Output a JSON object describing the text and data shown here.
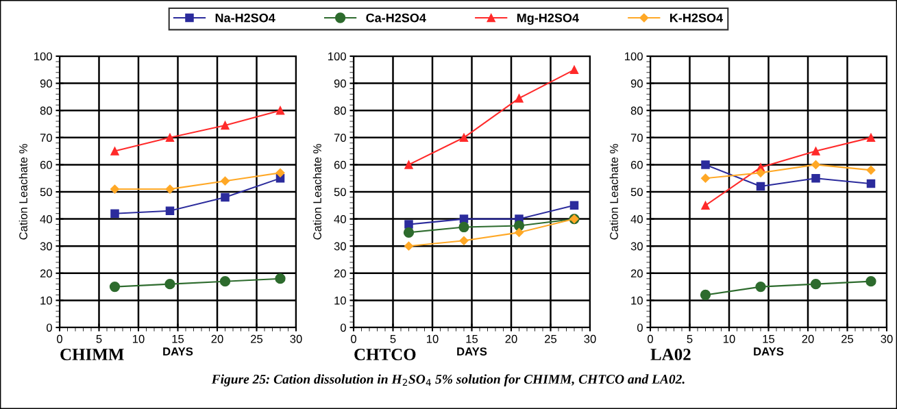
{
  "chart_data": [
    {
      "type": "line",
      "title": "CHIMM",
      "xlabel": "DAYS",
      "ylabel": "Cation Leachate %",
      "xlim": [
        0,
        30
      ],
      "xticks": [
        0,
        5,
        10,
        15,
        20,
        25,
        30
      ],
      "ylim": [
        0,
        100
      ],
      "yticks": [
        0,
        10,
        20,
        30,
        40,
        50,
        60,
        70,
        80,
        90,
        100
      ],
      "grid": true,
      "legend": "top",
      "x": [
        7,
        14,
        21,
        28
      ],
      "series": [
        {
          "name": "Na-H2SO4",
          "color": "#2b2b9c",
          "marker": "square",
          "values": [
            42,
            43,
            48,
            55
          ]
        },
        {
          "name": "Ca-H2SO4",
          "color": "#2d6b2d",
          "marker": "circle",
          "values": [
            15,
            16,
            17,
            18
          ]
        },
        {
          "name": "Mg-H2SO4",
          "color": "#ff2a2a",
          "marker": "triangle",
          "values": [
            65,
            70,
            74.5,
            80
          ]
        },
        {
          "name": "K-H2SO4",
          "color": "#ffa826",
          "marker": "diamond",
          "values": [
            51,
            51,
            54,
            57
          ]
        }
      ],
      "annotations": [
        "Figure 25: Cation dissolution in H$_{2}$SO$_{4}$ 5% solution for CHIMM, CHTCO and LA02."
      ]
    },
    {
      "type": "line",
      "title": "CHTCO",
      "xlabel": "DAYS",
      "ylabel": "Cation Leachate %",
      "xlim": [
        0,
        30
      ],
      "xticks": [
        0,
        5,
        10,
        15,
        20,
        25,
        30
      ],
      "ylim": [
        0,
        100
      ],
      "yticks": [
        0,
        10,
        20,
        30,
        40,
        50,
        60,
        70,
        80,
        90,
        100
      ],
      "grid": true,
      "x": [
        7,
        14,
        21,
        28
      ],
      "series": [
        {
          "color": "#2b2b9c",
          "marker": "square",
          "values": [
            38,
            40,
            40,
            45
          ]
        },
        {
          "color": "#2d6b2d",
          "marker": "circle",
          "values": [
            35,
            37,
            37.5,
            40
          ]
        },
        {
          "color": "#ff2a2a",
          "marker": "triangle",
          "values": [
            60,
            70,
            84.5,
            95
          ]
        },
        {
          "color": "#ffa826",
          "marker": "diamond",
          "values": [
            30,
            32,
            35,
            40
          ]
        }
      ]
    },
    {
      "type": "line",
      "title": "LA02",
      "xlabel": "DAYS",
      "ylabel": "Cation Leachate %",
      "xlim": [
        0,
        30
      ],
      "xticks": [
        0,
        5,
        10,
        15,
        20,
        25,
        30
      ],
      "ylim": [
        0,
        100
      ],
      "yticks": [
        0,
        10,
        20,
        30,
        40,
        50,
        60,
        70,
        80,
        90,
        100
      ],
      "grid": true,
      "x": [
        7,
        14,
        21,
        28
      ],
      "series": [
        {
          "color": "#2b2b9c",
          "marker": "square",
          "values": [
            60,
            52,
            55,
            53
          ]
        },
        {
          "color": "#2d6b2d",
          "marker": "circle",
          "values": [
            12,
            15,
            16,
            17
          ]
        },
        {
          "color": "#ff2a2a",
          "marker": "triangle",
          "values": [
            45,
            59,
            65,
            70
          ]
        },
        {
          "color": "#ffa826",
          "marker": "diamond",
          "values": [
            55,
            57,
            60,
            58
          ]
        }
      ]
    }
  ]
}
